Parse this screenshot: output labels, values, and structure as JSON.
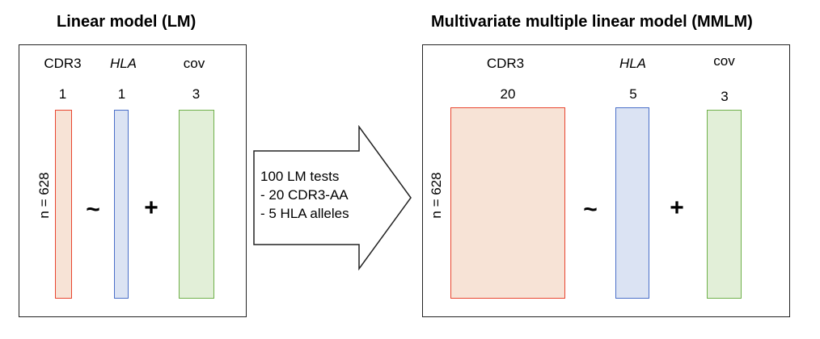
{
  "left": {
    "title": "Linear model (LM)",
    "n_label": "n = 628",
    "columns": [
      {
        "header": "CDR3",
        "italic": false,
        "count": "1",
        "color": "#f7e3d6",
        "border": "#e8452f"
      },
      {
        "header": "HLA",
        "italic": true,
        "count": "1",
        "color": "#dbe3f3",
        "border": "#4a6fc8"
      },
      {
        "header": "cov",
        "italic": false,
        "count": "3",
        "color": "#e2efd8",
        "border": "#6fb04a"
      }
    ],
    "tilde": "~",
    "plus": "+"
  },
  "arrow": {
    "line1": "100 LM tests",
    "line2": "- 20 CDR3-AA",
    "line3": "- 5 HLA alleles"
  },
  "right": {
    "title": "Multivariate multiple linear model (MMLM)",
    "n_label": "n = 628",
    "columns": [
      {
        "header": "CDR3",
        "italic": false,
        "count": "20",
        "color": "#f7e3d6",
        "border": "#e8452f"
      },
      {
        "header": "HLA",
        "italic": true,
        "count": "5",
        "color": "#dbe3f3",
        "border": "#4a6fc8"
      },
      {
        "header": "cov",
        "italic": false,
        "count": "3",
        "color": "#e2efd8",
        "border": "#6fb04a"
      }
    ],
    "tilde": "~",
    "plus": "+"
  }
}
